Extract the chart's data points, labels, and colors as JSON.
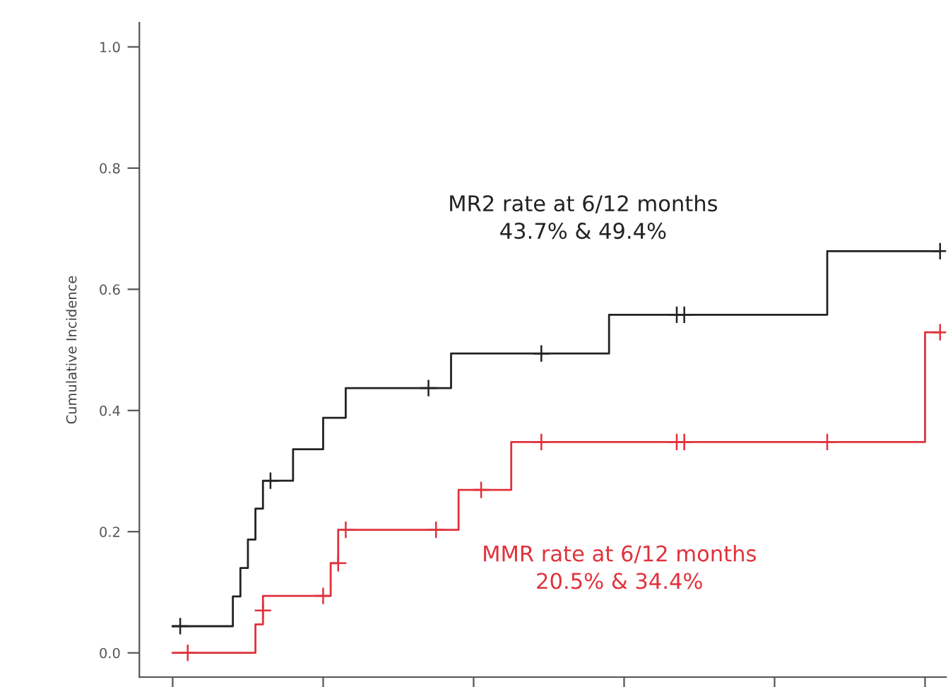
{
  "chart_data": {
    "type": "step",
    "ylabel": "Cumulative Incidence",
    "annotations": [
      "MR2 rate at 6/12 months\n43.7% & 49.4%",
      "MMR rate at 6/12 months\n20.5% & 34.4%"
    ],
    "categories": [
      null,
      null,
      null,
      null,
      null,
      null,
      null,
      null,
      null,
      null,
      null,
      null,
      null,
      null,
      null,
      null,
      null,
      null,
      null,
      null,
      null,
      null,
      null,
      null,
      null,
      null,
      null,
      null,
      null,
      null,
      null,
      null,
      null,
      null,
      null,
      null,
      null,
      null,
      null,
      null,
      null,
      null,
      null,
      null,
      null,
      null,
      null,
      null,
      null,
      null,
      null,
      null,
      null,
      null,
      null,
      null,
      null,
      null,
      null,
      null,
      null,
      null,
      null,
      null,
      null,
      null,
      null,
      null,
      null,
      null,
      null,
      null,
      null,
      null,
      null,
      null,
      null,
      null,
      null,
      null,
      null,
      null,
      null,
      null,
      null,
      null,
      null,
      null,
      null,
      null,
      null,
      null,
      null,
      null,
      null,
      null,
      null,
      null,
      null,
      null,
      null,
      null,
      null
    ],
    "series": [
      {
        "color": "#222222",
        "values": [
          0.044,
          0.044,
          0.044,
          0.044,
          0.044,
          0.044,
          0.044,
          0.044,
          0.093,
          0.14,
          0.187,
          0.238,
          0.284,
          0.284,
          0.284,
          0.284,
          0.336,
          0.336,
          0.336,
          0.336,
          0.388,
          0.388,
          0.388,
          0.437,
          0.437,
          0.437,
          0.437,
          0.437,
          0.437,
          0.437,
          0.437,
          0.437,
          0.437,
          0.437,
          0.437,
          0.437,
          0.437,
          0.494,
          0.494,
          0.494,
          0.494,
          0.494,
          0.494,
          0.494,
          0.494,
          0.494,
          0.494,
          0.494,
          0.494,
          0.494,
          0.494,
          0.494,
          0.494,
          0.494,
          0.494,
          0.494,
          0.494,
          0.494,
          0.558,
          0.558,
          0.558,
          0.558,
          0.558,
          0.558,
          0.558,
          0.558,
          0.558,
          0.558,
          0.558,
          0.558,
          0.558,
          0.558,
          0.558,
          0.558,
          0.558,
          0.558,
          0.558,
          0.558,
          0.558,
          0.558,
          0.558,
          0.558,
          0.558,
          0.558,
          0.558,
          0.558,
          0.558,
          0.663,
          0.663,
          0.663,
          0.663,
          0.663,
          0.663,
          0.663,
          0.663,
          0.663,
          0.663,
          0.663,
          0.663,
          0.663,
          0.663,
          0.663,
          0.663
        ]
      },
      {
        "color": "#e0323c",
        "values": [
          0,
          0,
          0,
          0,
          0,
          0,
          0,
          0,
          0,
          0,
          0,
          0.047,
          0.094,
          0.094,
          0.094,
          0.094,
          0.094,
          0.094,
          0.094,
          0.094,
          0.094,
          0.148,
          0.203,
          0.203,
          0.203,
          0.203,
          0.203,
          0.203,
          0.203,
          0.203,
          0.203,
          0.203,
          0.203,
          0.203,
          0.203,
          0.203,
          0.203,
          0.203,
          0.269,
          0.269,
          0.269,
          0.269,
          0.269,
          0.269,
          0.269,
          0.348,
          0.348,
          0.348,
          0.348,
          0.348,
          0.348,
          0.348,
          0.348,
          0.348,
          0.348,
          0.348,
          0.348,
          0.348,
          0.348,
          0.348,
          0.348,
          0.348,
          0.348,
          0.348,
          0.348,
          0.348,
          0.348,
          0.348,
          0.348,
          0.348,
          0.348,
          0.348,
          0.348,
          0.348,
          0.348,
          0.348,
          0.348,
          0.348,
          0.348,
          0.348,
          0.348,
          0.348,
          0.348,
          0.348,
          0.348,
          0.348,
          0.348,
          0.348,
          0.348,
          0.348,
          0.348,
          0.348,
          0.348,
          0.348,
          0.348,
          0.348,
          0.348,
          0.348,
          0.348,
          0.348,
          0.529,
          0.529,
          0.529
        ]
      },
      {
        "type": "scatter",
        "marker": "cross",
        "color": "#222222",
        "values": [
          null,
          0.044,
          null,
          null,
          null,
          null,
          null,
          null,
          null,
          null,
          null,
          null,
          null,
          0.284,
          null,
          null,
          null,
          null,
          null,
          null,
          null,
          null,
          null,
          null,
          null,
          null,
          null,
          null,
          null,
          null,
          null,
          null,
          null,
          null,
          0.437,
          null,
          null,
          null,
          null,
          null,
          null,
          null,
          null,
          null,
          null,
          null,
          null,
          null,
          null,
          0.494,
          null,
          null,
          null,
          null,
          null,
          null,
          null,
          null,
          null,
          null,
          null,
          null,
          null,
          null,
          null,
          null,
          null,
          0.558,
          0.558,
          null,
          null,
          null,
          null,
          null,
          null,
          null,
          null,
          null,
          null,
          null,
          null,
          null,
          null,
          null,
          null,
          null,
          null,
          null,
          null,
          null,
          null,
          null,
          null,
          null,
          null,
          null,
          null,
          null,
          null,
          null,
          null,
          null,
          0.663
        ]
      },
      {
        "type": "scatter",
        "marker": "cross",
        "color": "#e0323c",
        "values": [
          null,
          null,
          0,
          null,
          null,
          null,
          null,
          null,
          null,
          null,
          null,
          null,
          0.07,
          null,
          null,
          null,
          null,
          null,
          null,
          null,
          0.094,
          null,
          0.148,
          0.203,
          null,
          null,
          null,
          null,
          null,
          null,
          null,
          null,
          null,
          null,
          null,
          0.203,
          null,
          null,
          null,
          null,
          null,
          0.269,
          null,
          null,
          null,
          null,
          null,
          null,
          null,
          0.348,
          null,
          null,
          null,
          null,
          null,
          null,
          null,
          null,
          null,
          null,
          null,
          null,
          null,
          null,
          null,
          null,
          null,
          0.348,
          0.348,
          null,
          null,
          null,
          null,
          null,
          null,
          null,
          null,
          null,
          null,
          null,
          null,
          null,
          null,
          null,
          null,
          null,
          null,
          0.348,
          null,
          null,
          null,
          null,
          null,
          null,
          null,
          null,
          null,
          null,
          null,
          null,
          null,
          null,
          0.529
        ]
      }
    ],
    "ylim": [
      -0.04,
      1.04
    ],
    "yticks": [
      {
        "value": 0,
        "label": "0.0"
      },
      {
        "value": 0.2,
        "label": "0.2"
      },
      {
        "value": 0.4,
        "label": "0.4"
      },
      {
        "value": 0.6,
        "label": "0.6"
      },
      {
        "value": 0.8,
        "label": "0.8"
      },
      {
        "value": 1,
        "label": "1.0"
      }
    ],
    "tick_labels": "y"
  }
}
